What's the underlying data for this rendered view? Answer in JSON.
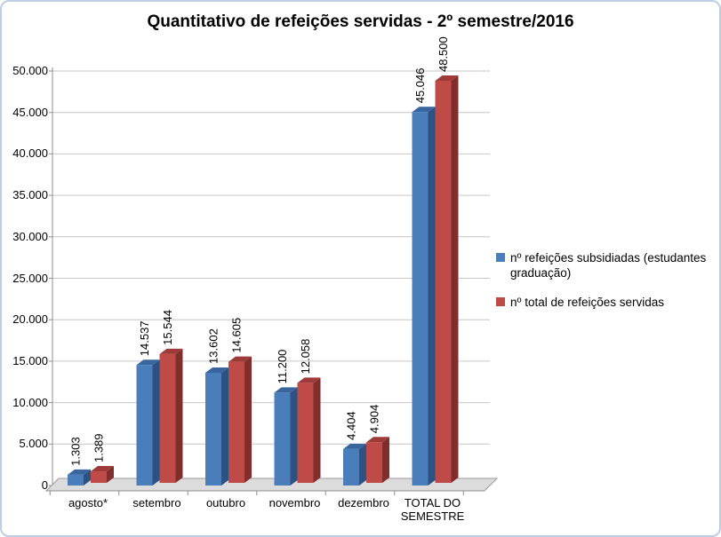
{
  "chart_data": {
    "type": "bar",
    "style": "3d-clustered-column",
    "title": "Quantitativo de refeições servidas - 2º semestre/2016",
    "categories": [
      "agosto*",
      "setembro",
      "outubro",
      "novembro",
      "dezembro",
      "TOTAL DO SEMESTRE"
    ],
    "series": [
      {
        "name": "nº refeições subsidiadas (estudantes graduação)",
        "color": "#4A7EBB",
        "color_top": "#38659E",
        "color_side": "#2D5181",
        "values": [
          1303,
          14537,
          13602,
          11200,
          4404,
          45046
        ],
        "value_labels": [
          "1.303",
          "14.537",
          "13.602",
          "11.200",
          "4.404",
          "45.046"
        ]
      },
      {
        "name": "nº total de refeições servidas",
        "color": "#BE4B48",
        "color_top": "#9E3A38",
        "color_side": "#7F2E2C",
        "values": [
          1389,
          15544,
          14605,
          12058,
          4904,
          48500
        ],
        "value_labels": [
          "1.389",
          "15.544",
          "14.605",
          "12.058",
          "4.904",
          "48.500"
        ]
      }
    ],
    "ylim": [
      0,
      50000
    ],
    "ytick_step": 5000,
    "ytick_labels": [
      "0",
      "5.000",
      "10.000",
      "15.000",
      "20.000",
      "25.000",
      "30.000",
      "35.000",
      "40.000",
      "45.000",
      "50.000"
    ],
    "grid": true,
    "legend_position": "right",
    "colors": {
      "gridline": "#C6C6C6",
      "axis": "#8E8E8E",
      "floor": "#DCDCDC",
      "floor_edge": "#9A9A9A",
      "frame": "#BCCDE8",
      "text": "#000000"
    }
  }
}
